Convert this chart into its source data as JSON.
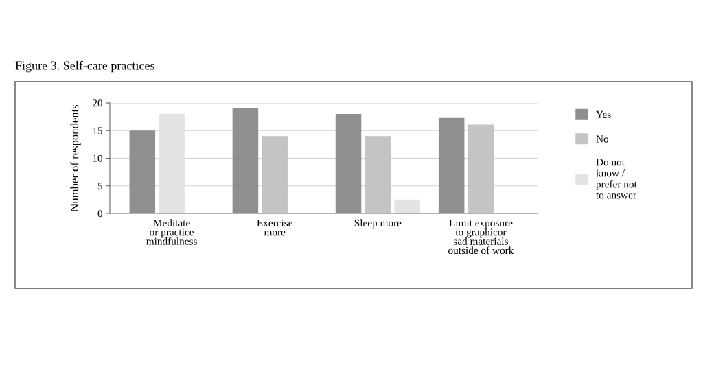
{
  "chart_data": {
    "type": "bar",
    "title": "Figure 3. Self-care practices",
    "ylabel": "Number of respondents",
    "categories": [
      "Meditate\nor practice\nmindfulness",
      "Exercise\nmore",
      "Sleep more",
      "Limit exposure\nto graphicor\nsad materials\noutside of work"
    ],
    "series": [
      {
        "name": "Yes",
        "color": "#8e8f91",
        "values": [
          15,
          19,
          18,
          17.3
        ]
      },
      {
        "name": "No",
        "color": "#c3c4c6",
        "colors": [
          "#e3e3e4",
          "#c3c4c6",
          "#c3c4c6",
          "#c3c4c6"
        ],
        "values": [
          18,
          14,
          14,
          16.1
        ]
      },
      {
        "name": "Do not\nknow /\nprefer not\nto answer",
        "color": "#e3e3e4",
        "values": [
          null,
          null,
          2.5,
          null
        ]
      }
    ],
    "ylim": [
      0,
      20
    ],
    "yticks": [
      0,
      5,
      10,
      15,
      20
    ],
    "grid": "y",
    "legend": "right"
  }
}
